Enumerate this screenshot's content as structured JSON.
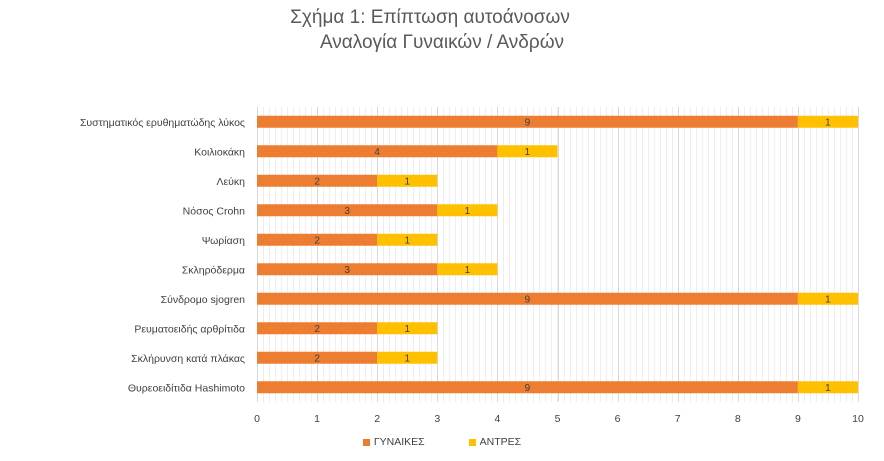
{
  "chart_data": {
    "type": "bar",
    "orientation": "horizontal",
    "stacked": true,
    "title": "Σχήμα 1: Επίπτωση αυτοάνοσων",
    "subtitle": "Αναλογία Γυναικών / Ανδρών",
    "categories": [
      "Συστηματικός ερυθηματώδης λύκος",
      "Κοιλιοκάκη",
      "Λεύκη",
      "Νόσος Crohn",
      "Ψωρίαση",
      "Σκληρόδερμα",
      "Σύνδρομο sjogren",
      "Ρευματοειδής αρθρίτιδα",
      "Σκλήρυνση κατά πλάκας",
      "Θυρεοειδίτιδα Hashimoto"
    ],
    "series": [
      {
        "name": "ΓΥΝΑΙΚΕΣ",
        "color": "#ED7D31",
        "values": [
          9,
          4,
          2,
          3,
          2,
          3,
          9,
          2,
          2,
          9
        ]
      },
      {
        "name": "ΑΝΤΡΕΣ",
        "color": "#FFC000",
        "values": [
          1,
          1,
          1,
          1,
          1,
          1,
          1,
          1,
          1,
          1
        ]
      }
    ],
    "xlim": [
      0,
      10
    ],
    "xticks": [
      "0",
      "1",
      "2",
      "3",
      "4",
      "5",
      "6",
      "7",
      "8",
      "9",
      "10"
    ],
    "grid": true,
    "legend_position": "bottom",
    "data_labels": true
  }
}
